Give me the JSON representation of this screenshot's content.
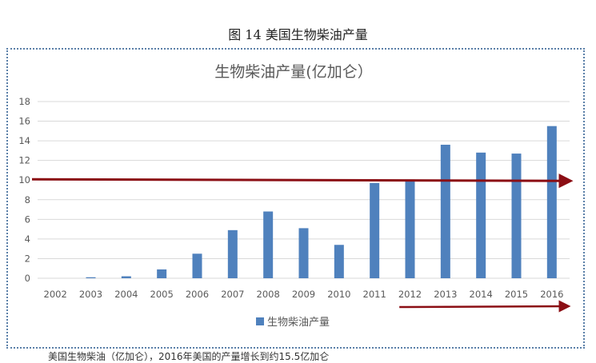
{
  "figure_caption": "图 14  美国生物柴油产量",
  "bottom_text": "美国生物柴油（亿加仑），2016年美国的产量增长到约15.5亿加仑",
  "colors": {
    "bar": "#4f81bd",
    "arrow": "#8b0e14",
    "grid": "#d9d9d9",
    "frame": "#5a7fa8"
  },
  "chart_data": {
    "type": "bar",
    "title": "生物柴油产量(亿加仑）",
    "categories": [
      "2002",
      "2003",
      "2004",
      "2005",
      "2006",
      "2007",
      "2008",
      "2009",
      "2010",
      "2011",
      "2012",
      "2013",
      "2014",
      "2015",
      "2016"
    ],
    "series": [
      {
        "name": "生物柴油产量",
        "values": [
          0,
          0.1,
          0.2,
          0.9,
          2.5,
          4.9,
          6.8,
          5.1,
          3.4,
          9.7,
          9.9,
          13.6,
          12.8,
          12.7,
          15.5
        ]
      }
    ],
    "yticks": [
      "0",
      "2",
      "4",
      "6",
      "8",
      "10",
      "12",
      "14",
      "16",
      "18"
    ],
    "ylim": [
      0,
      18
    ],
    "grid": true,
    "legend": "bottom",
    "annotations": [
      {
        "type": "arrow",
        "y": 10,
        "from": "2002",
        "to": "2016"
      },
      {
        "type": "arrow",
        "from": "2012",
        "to": "2016"
      }
    ]
  }
}
